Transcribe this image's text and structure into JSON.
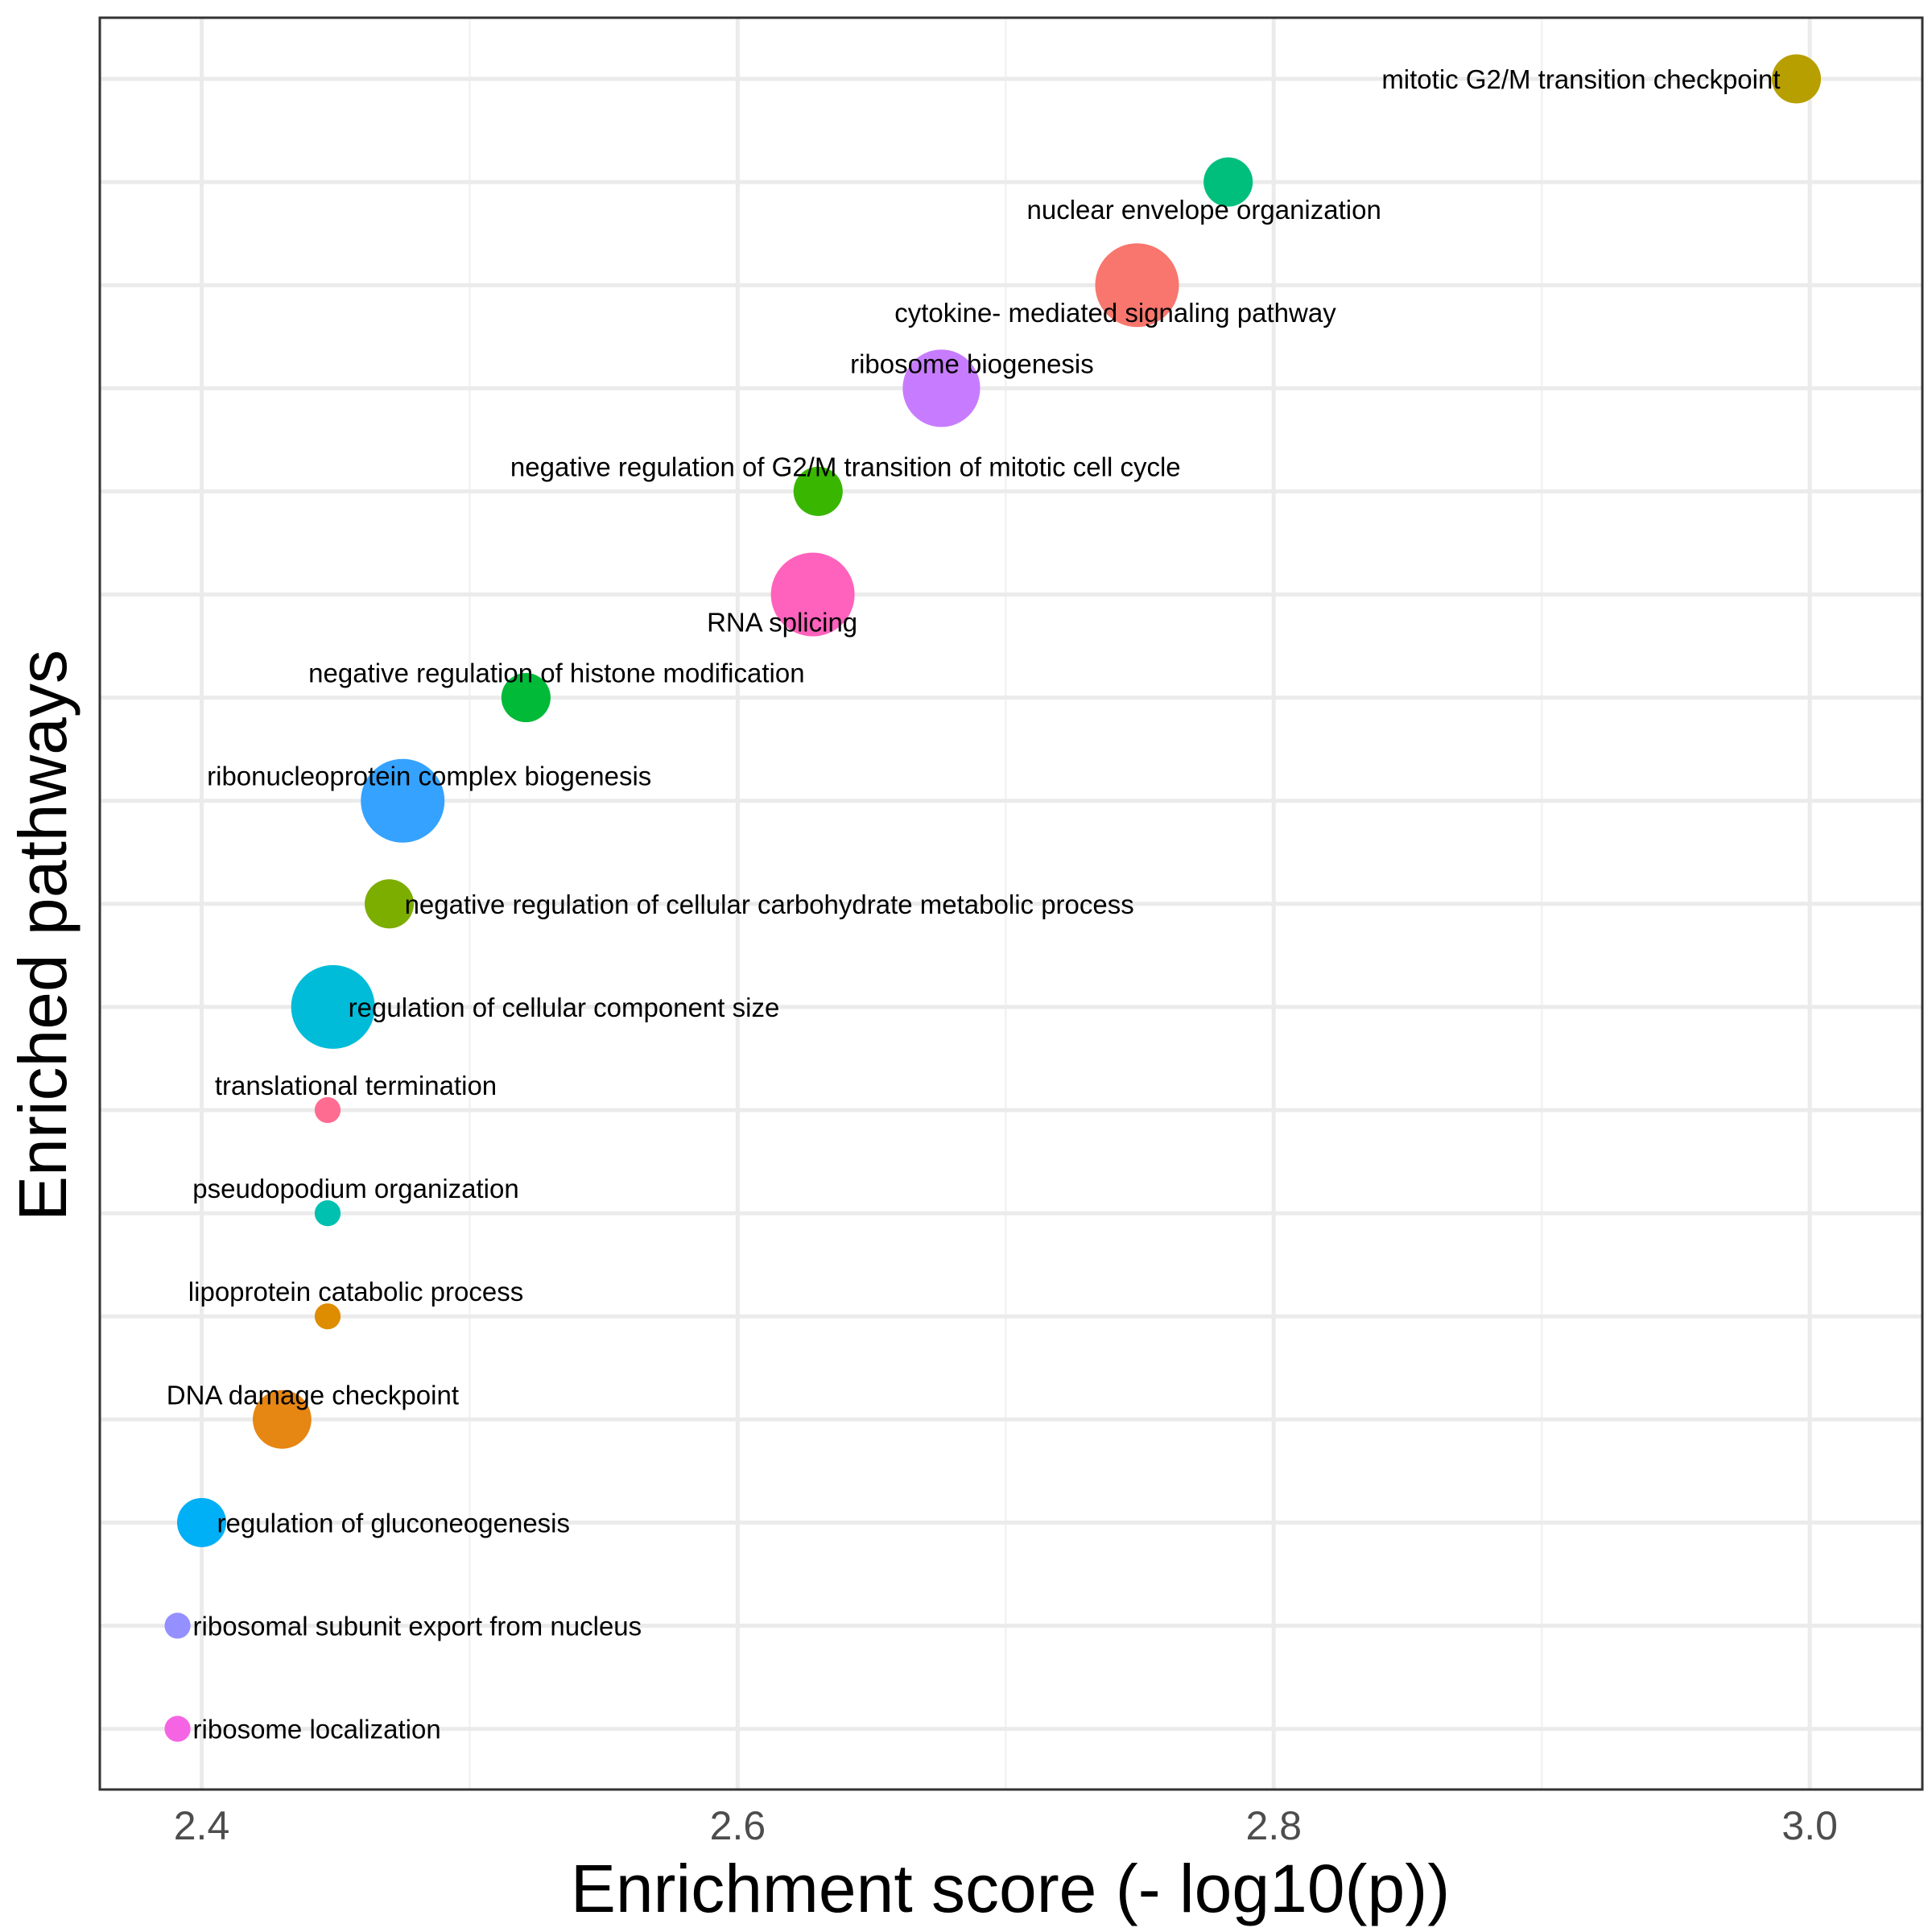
{
  "chart_data": {
    "type": "scatter",
    "title": "",
    "xlabel": "Enrichment score (- log10(p))",
    "ylabel": "Enriched pathways",
    "xlim": [
      2.362,
      3.042
    ],
    "x_ticks": [
      2.4,
      2.6,
      2.8,
      3.0
    ],
    "x_tick_labels": [
      "2.4",
      "2.6",
      "2.8",
      "3.0"
    ],
    "y_tick_labels_shown": false,
    "grid": true,
    "legend": "none",
    "size_encoding": "relative count (no legend shown)",
    "points": [
      {
        "label": "mitotic G2/M transition checkpoint",
        "x": 2.995,
        "size": 0.45,
        "color": "#B79F00"
      },
      {
        "label": "nuclear envelope organization",
        "x": 2.783,
        "size": 0.45,
        "color": "#00BF7D"
      },
      {
        "label": "cytokine- mediated signaling pathway",
        "x": 2.749,
        "size": 1.0,
        "color": "#F8766D"
      },
      {
        "label": "ribosome biogenesis",
        "x": 2.676,
        "size": 0.9,
        "color": "#C77CFF"
      },
      {
        "label": "negative regulation of G2/M transition of mitotic cell cycle",
        "x": 2.63,
        "size": 0.45,
        "color": "#39B600"
      },
      {
        "label": "RNA splicing",
        "x": 2.628,
        "size": 1.0,
        "color": "#FF62BC"
      },
      {
        "label": "negative regulation of histone modification",
        "x": 2.521,
        "size": 0.45,
        "color": "#00BA38"
      },
      {
        "label": "ribonucleoprotein complex biogenesis",
        "x": 2.475,
        "size": 1.0,
        "color": "#35A2FF"
      },
      {
        "label": "negative regulation of cellular carbohydrate metabolic process",
        "x": 2.47,
        "size": 0.45,
        "color": "#7CAE00"
      },
      {
        "label": "regulation of cellular component size",
        "x": 2.449,
        "size": 1.0,
        "color": "#00BCD8"
      },
      {
        "label": "translational termination",
        "x": 2.447,
        "size": 0.08,
        "color": "#FF6C91"
      },
      {
        "label": "pseudopodium organization",
        "x": 2.447,
        "size": 0.08,
        "color": "#00C0AF"
      },
      {
        "label": "lipoprotein catabolic process",
        "x": 2.447,
        "size": 0.08,
        "color": "#DE8C00"
      },
      {
        "label": "DNA damage checkpoint",
        "x": 2.43,
        "size": 0.6,
        "color": "#E68613"
      },
      {
        "label": "regulation of gluconeogenesis",
        "x": 2.4,
        "size": 0.45,
        "color": "#00B0F6"
      },
      {
        "label": "ribosomal subunit export from nucleus",
        "x": 2.391,
        "size": 0.08,
        "color": "#9590FF"
      },
      {
        "label": "ribosome localization",
        "x": 2.391,
        "size": 0.08,
        "color": "#F564E3"
      }
    ]
  }
}
